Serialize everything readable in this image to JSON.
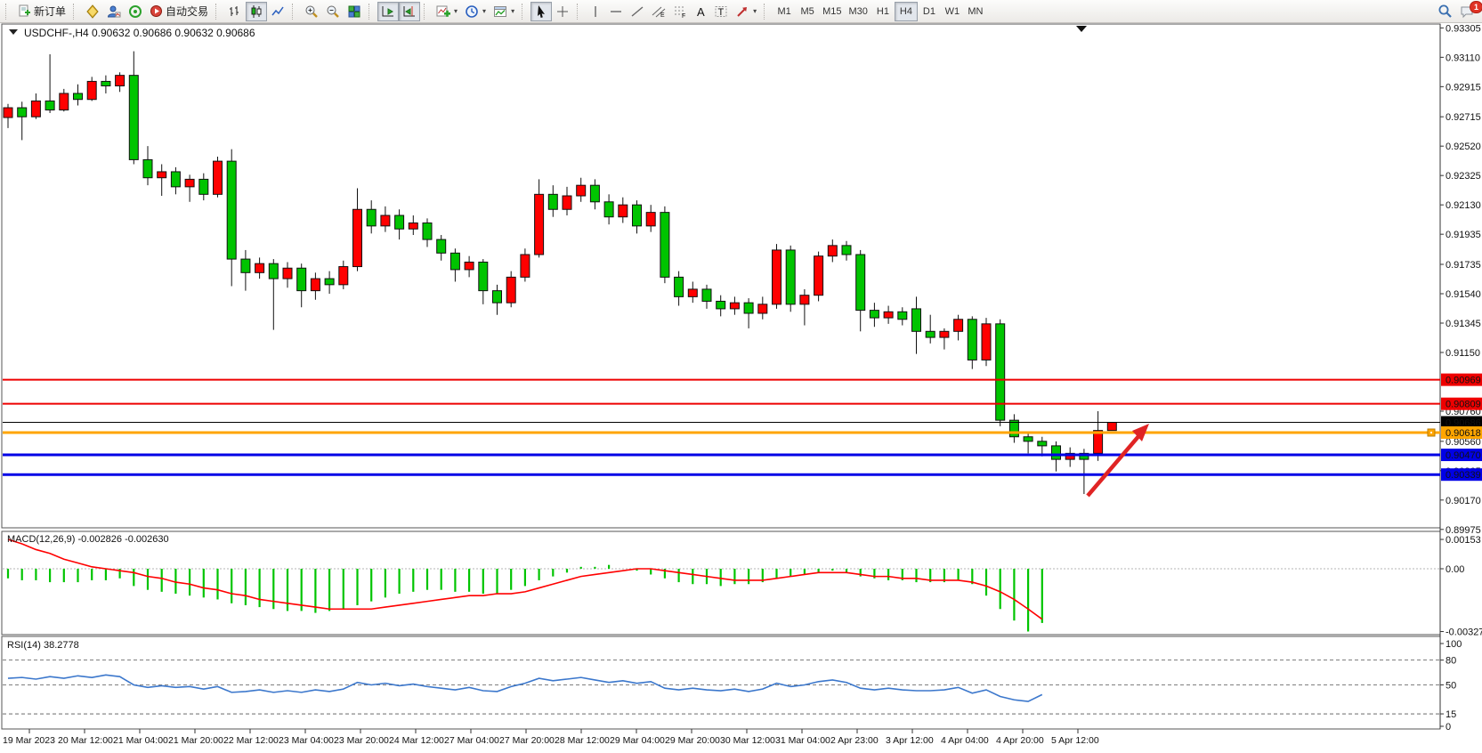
{
  "toolbar": {
    "new_order_label": "新订单",
    "autotrading_label": "自动交易",
    "timeframes": [
      "M1",
      "M5",
      "M15",
      "M30",
      "H1",
      "H4",
      "D1",
      "W1",
      "MN"
    ],
    "active_timeframe": "H4",
    "notification_count": "1",
    "icons": [
      "document-plus-icon",
      "compass-icon",
      "profile-icon",
      "signals-icon",
      "autotrading-icon",
      "bar-chart-icon",
      "candlestick-chart-icon",
      "line-chart-icon",
      "zoom-in-icon",
      "zoom-out-icon",
      "tile-windows-icon",
      "autoscroll-icon",
      "chart-shift-icon",
      "indicators-icon",
      "periods-clock-icon",
      "templates-icon",
      "cursor-icon",
      "crosshair-icon",
      "vertical-line-icon",
      "horizontal-line-icon",
      "trendline-icon",
      "channel-icon",
      "fibonacci-icon",
      "text-icon",
      "label-icon",
      "shapes-icon",
      "search-icon",
      "chat-icon"
    ]
  },
  "chart": {
    "title": {
      "symbol": "USDCHF-,H4",
      "open": "0.90632",
      "high": "0.90686",
      "low": "0.90632",
      "close": "0.90686"
    },
    "price_axis_ticks": [
      "0.93305",
      "0.93110",
      "0.92915",
      "0.92715",
      "0.92520",
      "0.92325",
      "0.92130",
      "0.91935",
      "0.91735",
      "0.91540",
      "0.91345",
      "0.91150",
      "0.90760",
      "0.90560",
      "0.90365",
      "0.90170",
      "0.89975"
    ],
    "time_axis_labels": [
      "19 Mar 2023",
      "20 Mar 12:00",
      "21 Mar 04:00",
      "21 Mar 20:00",
      "22 Mar 12:00",
      "23 Mar 04:00",
      "23 Mar 20:00",
      "24 Mar 12:00",
      "27 Mar 04:00",
      "27 Mar 20:00",
      "28 Mar 12:00",
      "29 Mar 04:00",
      "29 Mar 20:00",
      "30 Mar 12:00",
      "31 Mar 04:00",
      "2 Apr 23:00",
      "3 Apr 12:00",
      "4 Apr 04:00",
      "4 Apr 20:00",
      "5 Apr 12:00"
    ],
    "hlines": [
      {
        "price": 0.90969,
        "label": "0.90969",
        "color": "#ee0000",
        "width": 2
      },
      {
        "price": 0.90809,
        "label": "0.90809",
        "color": "#ee0000",
        "width": 2
      },
      {
        "price": 0.90618,
        "label": "0.90618",
        "color": "#ffa500",
        "width": 3
      },
      {
        "price": 0.9047,
        "label": "0.90470",
        "color": "#0000e6",
        "width": 3
      },
      {
        "price": 0.90339,
        "label": "0.90339",
        "color": "#0000e6",
        "width": 3
      }
    ],
    "bid_line": {
      "price": 0.90686,
      "label": "0.90686",
      "color": "#000000",
      "width": 1
    }
  },
  "macd_panel": {
    "label": "MACD(12,26,9)",
    "value_main": "-0.002826",
    "value_signal": "-0.002630",
    "axis": [
      {
        "v": 0.00153,
        "t": "0.00153"
      },
      {
        "v": 0,
        "t": "0.00"
      },
      {
        "v": -0.003273,
        "t": "-0.003273"
      }
    ]
  },
  "rsi_panel": {
    "label": "RSI(14)",
    "value": "38.2778",
    "axis": [
      {
        "v": 100,
        "t": "100"
      },
      {
        "v": 80,
        "t": "80"
      },
      {
        "v": 50,
        "t": "50"
      },
      {
        "v": 15,
        "t": "15"
      },
      {
        "v": 0,
        "t": "0"
      }
    ],
    "levels": [
      80,
      50,
      15
    ]
  },
  "chart_data": {
    "type": "candlestick",
    "symbol": "USDCHF",
    "timeframe": "H4",
    "price_range": [
      0.89975,
      0.9333
    ],
    "colors": {
      "up": "#ff0000",
      "down": "#00c400",
      "outline": "#111111",
      "macd_hist": "#00c400",
      "macd_signal": "#ff0000",
      "rsi_line": "#3b77cc",
      "arrow": "#e02424"
    },
    "candles": [
      [
        0.9271,
        0.928,
        0.9264,
        0.92775
      ],
      [
        0.92775,
        0.92815,
        0.9256,
        0.92715
      ],
      [
        0.92715,
        0.9287,
        0.927,
        0.9282
      ],
      [
        0.9282,
        0.9313,
        0.9274,
        0.9276
      ],
      [
        0.9276,
        0.929,
        0.9275,
        0.9287
      ],
      [
        0.9287,
        0.9293,
        0.9279,
        0.9283
      ],
      [
        0.9283,
        0.9298,
        0.9282,
        0.9295
      ],
      [
        0.9295,
        0.9299,
        0.9287,
        0.9292
      ],
      [
        0.9292,
        0.9301,
        0.9288,
        0.9299
      ],
      [
        0.9299,
        0.9315,
        0.924,
        0.9243
      ],
      [
        0.9243,
        0.9252,
        0.9226,
        0.9231
      ],
      [
        0.9231,
        0.924,
        0.9219,
        0.9235
      ],
      [
        0.9235,
        0.9238,
        0.922,
        0.9225
      ],
      [
        0.9225,
        0.9233,
        0.9215,
        0.923
      ],
      [
        0.923,
        0.9234,
        0.9216,
        0.922
      ],
      [
        0.922,
        0.9245,
        0.9218,
        0.9242
      ],
      [
        0.9242,
        0.925,
        0.9159,
        0.9177
      ],
      [
        0.9177,
        0.9183,
        0.9156,
        0.9168
      ],
      [
        0.9168,
        0.9178,
        0.9164,
        0.9174
      ],
      [
        0.9174,
        0.9177,
        0.913,
        0.9164
      ],
      [
        0.9164,
        0.9175,
        0.9158,
        0.9171
      ],
      [
        0.9171,
        0.9174,
        0.9145,
        0.9156
      ],
      [
        0.9156,
        0.9168,
        0.915,
        0.9164
      ],
      [
        0.9164,
        0.9169,
        0.9154,
        0.916
      ],
      [
        0.916,
        0.9176,
        0.9157,
        0.9172
      ],
      [
        0.9172,
        0.9224,
        0.9169,
        0.921
      ],
      [
        0.921,
        0.9216,
        0.9194,
        0.9199
      ],
      [
        0.9199,
        0.9212,
        0.9195,
        0.9206
      ],
      [
        0.9206,
        0.921,
        0.919,
        0.9197
      ],
      [
        0.9197,
        0.9206,
        0.9193,
        0.9201
      ],
      [
        0.9201,
        0.9204,
        0.9185,
        0.919
      ],
      [
        0.919,
        0.9193,
        0.9176,
        0.9181
      ],
      [
        0.9181,
        0.9184,
        0.9162,
        0.917
      ],
      [
        0.917,
        0.9179,
        0.9165,
        0.9175
      ],
      [
        0.9175,
        0.9177,
        0.9147,
        0.9156
      ],
      [
        0.9156,
        0.916,
        0.914,
        0.9148
      ],
      [
        0.9148,
        0.9169,
        0.9145,
        0.9165
      ],
      [
        0.9165,
        0.9184,
        0.9162,
        0.918
      ],
      [
        0.918,
        0.923,
        0.9178,
        0.922
      ],
      [
        0.922,
        0.9226,
        0.9205,
        0.921
      ],
      [
        0.921,
        0.9225,
        0.9206,
        0.9219
      ],
      [
        0.9219,
        0.9231,
        0.9215,
        0.9226
      ],
      [
        0.9226,
        0.923,
        0.921,
        0.9215
      ],
      [
        0.9215,
        0.922,
        0.92,
        0.9205
      ],
      [
        0.9205,
        0.9218,
        0.9201,
        0.9213
      ],
      [
        0.9213,
        0.9216,
        0.9194,
        0.9199
      ],
      [
        0.9199,
        0.9213,
        0.9195,
        0.9208
      ],
      [
        0.9208,
        0.9212,
        0.9161,
        0.9165
      ],
      [
        0.9165,
        0.9169,
        0.9146,
        0.9152
      ],
      [
        0.9152,
        0.9162,
        0.9148,
        0.9157
      ],
      [
        0.9157,
        0.916,
        0.9144,
        0.9149
      ],
      [
        0.9149,
        0.9153,
        0.9139,
        0.9144
      ],
      [
        0.9144,
        0.9152,
        0.914,
        0.9148
      ],
      [
        0.9148,
        0.9151,
        0.9131,
        0.9141
      ],
      [
        0.9141,
        0.9152,
        0.9137,
        0.9147
      ],
      [
        0.9147,
        0.9187,
        0.9144,
        0.9183
      ],
      [
        0.9183,
        0.9186,
        0.9142,
        0.9147
      ],
      [
        0.9147,
        0.9157,
        0.9133,
        0.9153
      ],
      [
        0.9153,
        0.9182,
        0.9149,
        0.9179
      ],
      [
        0.9179,
        0.919,
        0.9175,
        0.9186
      ],
      [
        0.9186,
        0.9189,
        0.9176,
        0.918
      ],
      [
        0.918,
        0.9183,
        0.9129,
        0.9143
      ],
      [
        0.9143,
        0.9148,
        0.9132,
        0.9138
      ],
      [
        0.9138,
        0.9146,
        0.9134,
        0.9142
      ],
      [
        0.9142,
        0.9145,
        0.9133,
        0.9137
      ],
      [
        0.9144,
        0.9152,
        0.9114,
        0.9129
      ],
      [
        0.9129,
        0.914,
        0.9121,
        0.9125
      ],
      [
        0.9125,
        0.9131,
        0.9117,
        0.9129
      ],
      [
        0.9129,
        0.914,
        0.9123,
        0.9137
      ],
      [
        0.9137,
        0.9139,
        0.9104,
        0.911
      ],
      [
        0.911,
        0.9138,
        0.9106,
        0.9134
      ],
      [
        0.9134,
        0.9137,
        0.9066,
        0.907
      ],
      [
        0.907,
        0.9074,
        0.9055,
        0.9059
      ],
      [
        0.9059,
        0.9062,
        0.9048,
        0.9056
      ],
      [
        0.9056,
        0.9059,
        0.9046,
        0.9053
      ],
      [
        0.9053,
        0.9056,
        0.9036,
        0.9044
      ],
      [
        0.9044,
        0.9052,
        0.9039,
        0.9048
      ],
      [
        0.9048,
        0.9051,
        0.9021,
        0.9044
      ],
      [
        0.9048,
        0.9076,
        0.9043,
        0.90632
      ],
      [
        0.90632,
        0.90686,
        0.90632,
        0.90686
      ]
    ],
    "macd_histogram": [
      -0.0005,
      -0.0006,
      -0.0006,
      -0.0007,
      -0.0007,
      -0.0007,
      -0.0006,
      -0.0006,
      -0.0005,
      -0.0009,
      -0.0011,
      -0.0012,
      -0.0013,
      -0.0014,
      -0.0015,
      -0.0016,
      -0.0018,
      -0.0019,
      -0.002,
      -0.0021,
      -0.0022,
      -0.0022,
      -0.0023,
      -0.0022,
      -0.0021,
      -0.0019,
      -0.0017,
      -0.0015,
      -0.0013,
      -0.0012,
      -0.0011,
      -0.0011,
      -0.0012,
      -0.0012,
      -0.0013,
      -0.0013,
      -0.0011,
      -0.0009,
      -0.0006,
      -0.0004,
      -0.0002,
      0.0001,
      0.0001,
      0.0002,
      0.0,
      -0.0001,
      -0.0003,
      -0.0005,
      -0.0007,
      -0.0008,
      -0.0008,
      -0.0009,
      -0.0008,
      -0.0008,
      -0.0007,
      -0.0005,
      -0.0004,
      -0.0003,
      -0.0002,
      -0.0001,
      -0.0002,
      -0.0004,
      -0.0005,
      -0.0006,
      -0.0006,
      -0.0007,
      -0.0007,
      -0.0007,
      -0.0006,
      -0.0008,
      -0.0014,
      -0.0021,
      -0.0027,
      -0.003273,
      -0.002826
    ],
    "macd_signal": [
      0.00153,
      0.0013,
      0.001,
      0.0008,
      0.0005,
      0.0003,
      0.0001,
      0.0,
      -0.0001,
      -0.0002,
      -0.0004,
      -0.0005,
      -0.0007,
      -0.0008,
      -0.001,
      -0.0011,
      -0.0013,
      -0.0014,
      -0.0016,
      -0.0017,
      -0.0018,
      -0.0019,
      -0.002,
      -0.0021,
      -0.0021,
      -0.0021,
      -0.0021,
      -0.002,
      -0.0019,
      -0.0018,
      -0.0017,
      -0.0016,
      -0.0015,
      -0.0014,
      -0.0014,
      -0.0013,
      -0.0013,
      -0.0012,
      -0.001,
      -0.0008,
      -0.0006,
      -0.0004,
      -0.0003,
      -0.0002,
      -0.0001,
      0.0,
      0.0,
      -0.0001,
      -0.0002,
      -0.0003,
      -0.0004,
      -0.0005,
      -0.0006,
      -0.0006,
      -0.0006,
      -0.0005,
      -0.0004,
      -0.0003,
      -0.0002,
      -0.0002,
      -0.0002,
      -0.0003,
      -0.0004,
      -0.0004,
      -0.0005,
      -0.0005,
      -0.0006,
      -0.0006,
      -0.0006,
      -0.0007,
      -0.0009,
      -0.0012,
      -0.0016,
      -0.0021,
      -0.00263
    ],
    "rsi_series": [
      58,
      59,
      57,
      60,
      58,
      61,
      59,
      62,
      60,
      50,
      47,
      49,
      47,
      48,
      45,
      48,
      41,
      42,
      44,
      41,
      43,
      41,
      44,
      42,
      45,
      53,
      50,
      52,
      49,
      51,
      48,
      46,
      44,
      47,
      43,
      42,
      48,
      52,
      58,
      55,
      57,
      59,
      56,
      53,
      55,
      52,
      54,
      46,
      44,
      46,
      44,
      43,
      45,
      42,
      45,
      52,
      48,
      50,
      54,
      56,
      53,
      46,
      44,
      46,
      44,
      43,
      43,
      44,
      47,
      40,
      44,
      36,
      32,
      30,
      38.2778
    ]
  }
}
